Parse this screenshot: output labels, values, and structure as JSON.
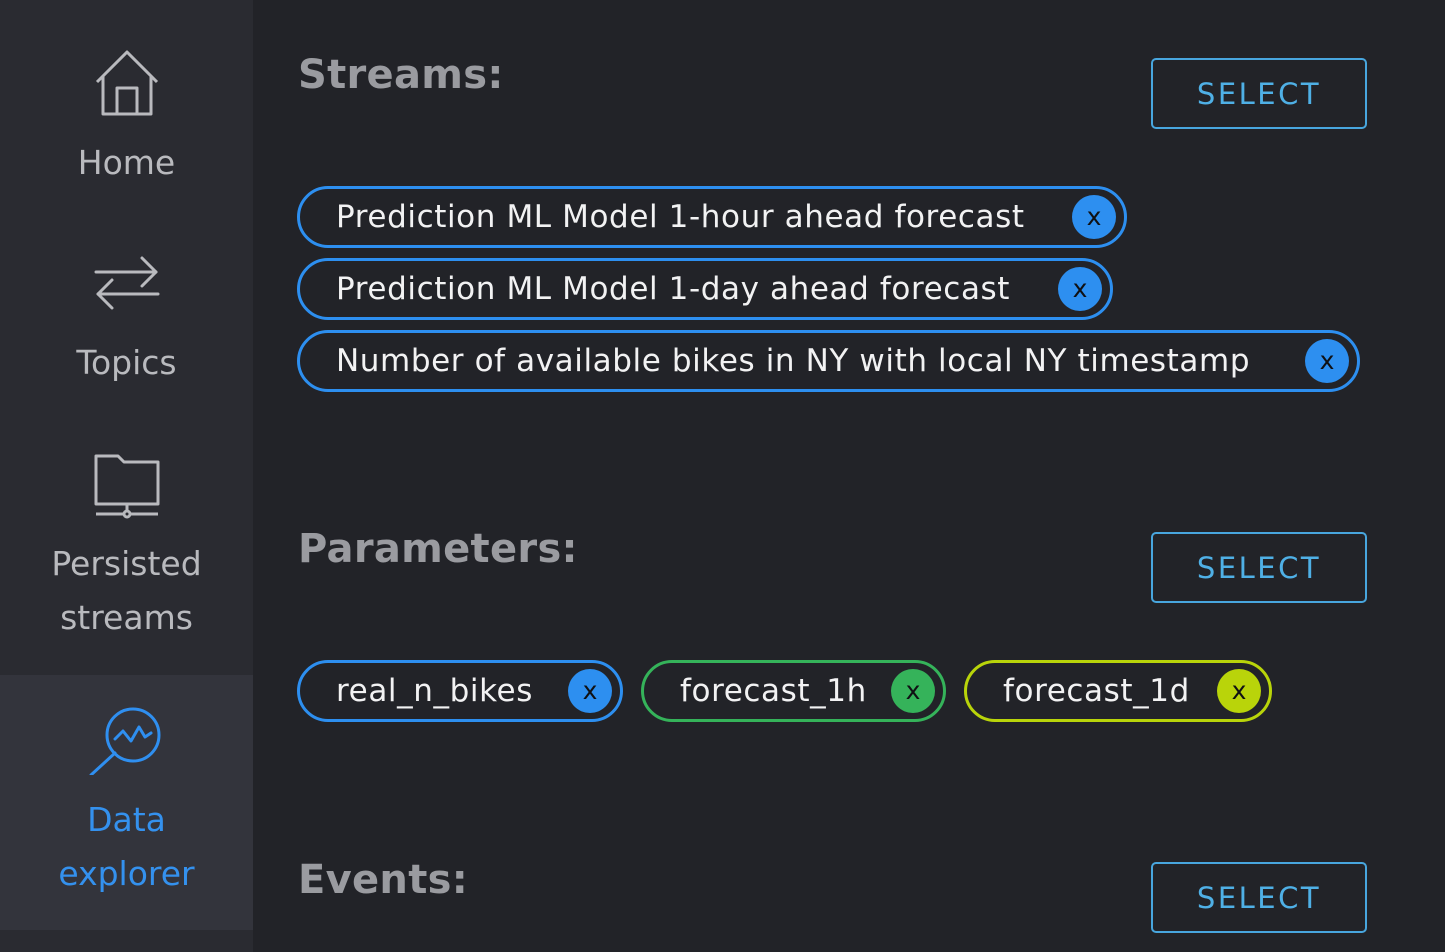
{
  "sidebar": {
    "items": [
      {
        "id": "home",
        "label": "Home",
        "icon": "home-icon"
      },
      {
        "id": "topics",
        "label": "Topics",
        "icon": "arrows-exchange-icon"
      },
      {
        "id": "persisted",
        "label_line1": "Persisted",
        "label_line2": "streams",
        "icon": "folder-network-icon"
      },
      {
        "id": "explorer",
        "label_line1": "Data",
        "label_line2": "explorer",
        "icon": "magnifier-chart-icon",
        "active": true
      }
    ],
    "active_color": "#2f8ff0"
  },
  "streams": {
    "title": "Streams:",
    "select_label": "SELECT",
    "chips": [
      {
        "label": "Prediction ML Model 1-hour ahead forecast",
        "remove": "x",
        "color": "#2d8ff0"
      },
      {
        "label": "Prediction ML Model 1-day ahead forecast",
        "remove": "x",
        "color": "#2d8ff0"
      },
      {
        "label": "Number of available bikes in NY with local NY timestamp",
        "remove": "x",
        "color": "#2d8ff0"
      }
    ]
  },
  "parameters": {
    "title": "Parameters:",
    "select_label": "SELECT",
    "chips": [
      {
        "label": "real_n_bikes",
        "remove": "x",
        "color": "#2d8ff0"
      },
      {
        "label": "forecast_1h",
        "remove": "x",
        "color": "#35b35a"
      },
      {
        "label": "forecast_1d",
        "remove": "x",
        "color": "#b9d40a"
      }
    ]
  },
  "events": {
    "title": "Events:",
    "select_label": "SELECT"
  }
}
